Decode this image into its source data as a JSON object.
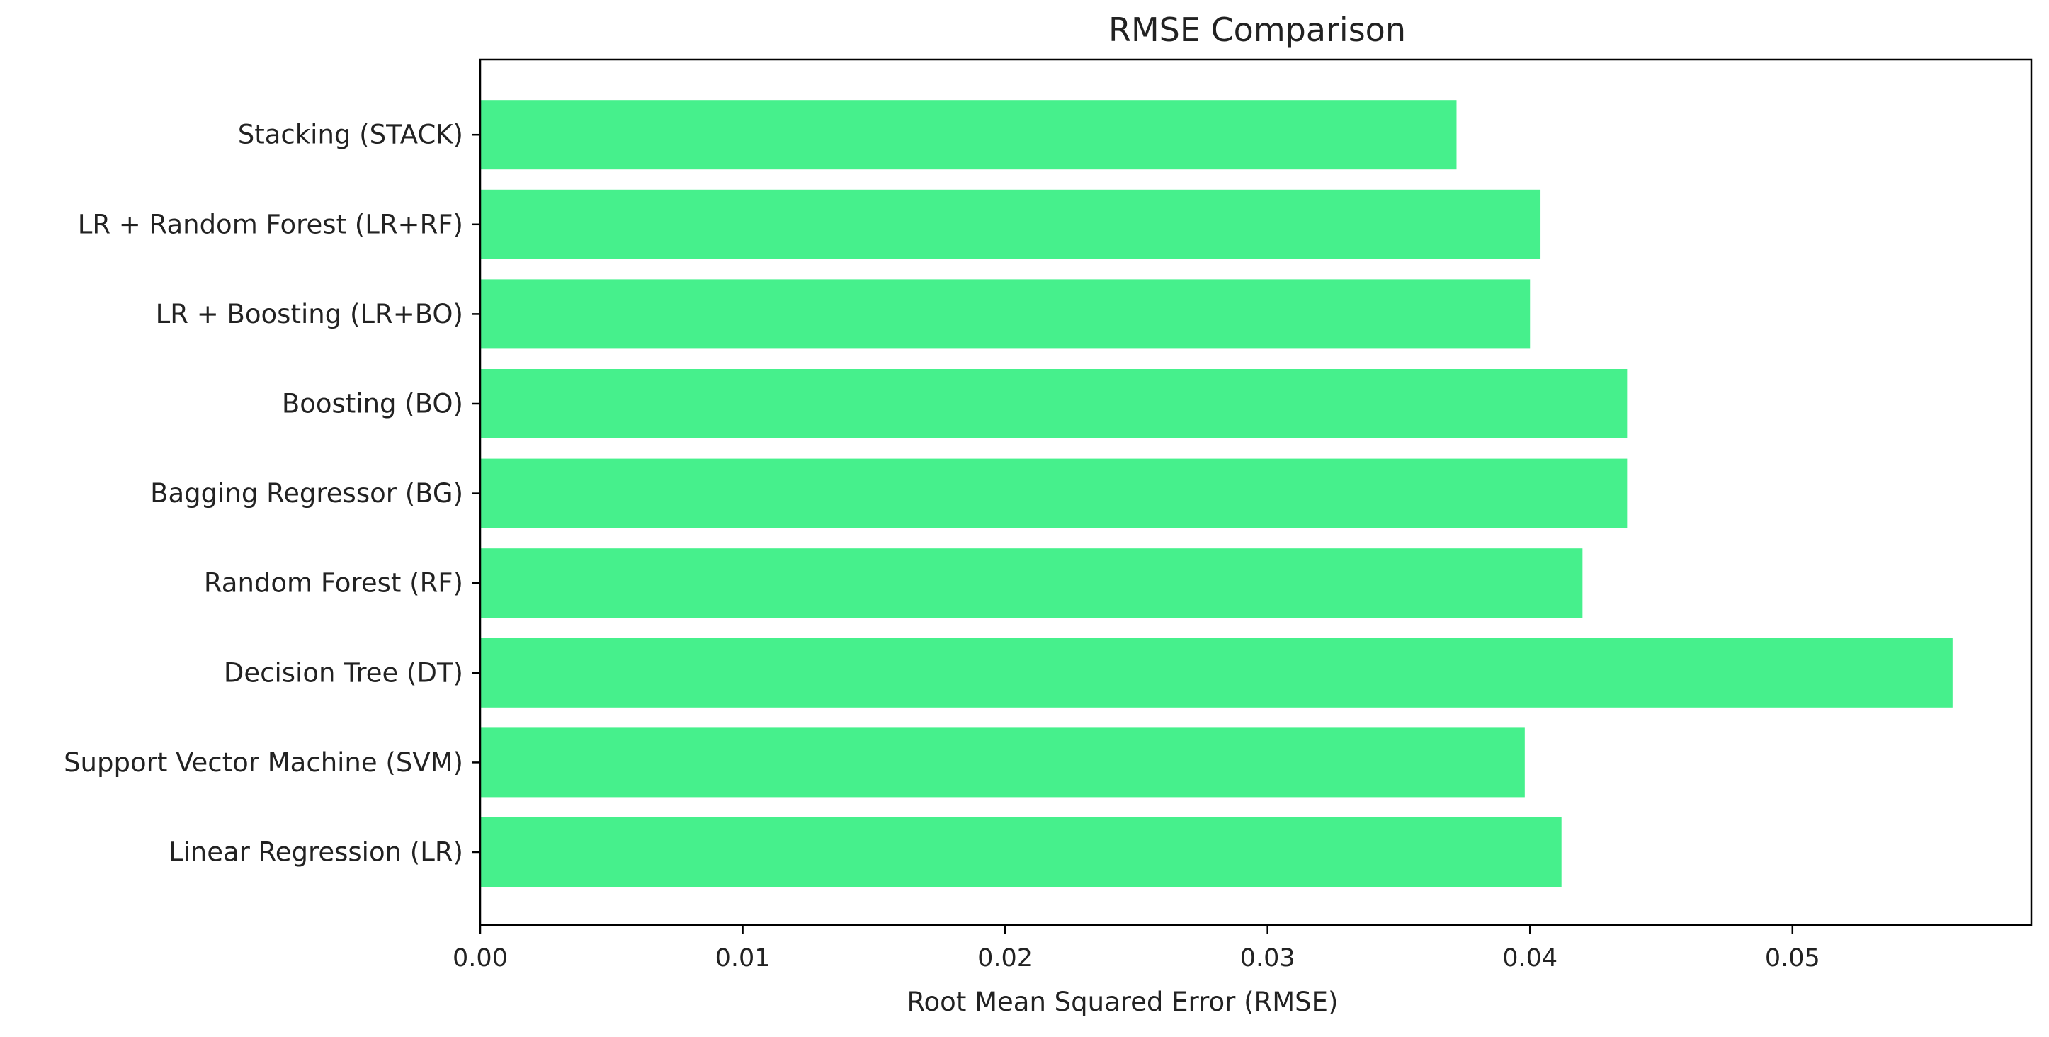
{
  "chart_data": {
    "type": "bar",
    "orientation": "horizontal",
    "title": "RMSE Comparison",
    "xlabel": "Root Mean Squared Error (RMSE)",
    "ylabel": "",
    "categories": [
      "Linear Regression (LR)",
      "Support Vector Machine (SVM)",
      "Decision Tree (DT)",
      "Random Forest (RF)",
      "Bagging Regressor (BG)",
      "Boosting (BO)",
      "LR + Boosting (LR+BO)",
      "LR + Random Forest (LR+RF)",
      "Stacking (STACK)"
    ],
    "values": [
      0.0412,
      0.0398,
      0.0561,
      0.042,
      0.0437,
      0.0437,
      0.04,
      0.0404,
      0.0372
    ],
    "xlim": [
      0,
      0.0591
    ],
    "xticks": [
      0.0,
      0.01,
      0.02,
      0.03,
      0.04,
      0.05
    ],
    "xtick_labels": [
      "0.00",
      "0.01",
      "0.02",
      "0.03",
      "0.04",
      "0.05"
    ],
    "bar_color": "#46f08c",
    "grid": false,
    "legend": "none"
  }
}
